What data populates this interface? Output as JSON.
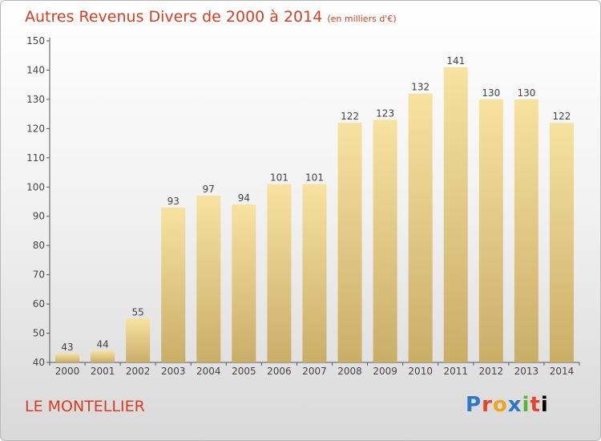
{
  "title": "Autres Revenus Divers de 2000 à 2014",
  "unit": "(en milliers d'€)",
  "place": "LE MONTELLIER",
  "logo": {
    "letters": [
      "P",
      "r",
      "o",
      "x",
      "i",
      "t",
      "i"
    ]
  },
  "chart_data": {
    "type": "bar",
    "categories": [
      "2000",
      "2001",
      "2002",
      "2003",
      "2004",
      "2005",
      "2006",
      "2007",
      "2008",
      "2009",
      "2010",
      "2011",
      "2012",
      "2013",
      "2014"
    ],
    "values": [
      43,
      44,
      55,
      93,
      97,
      94,
      101,
      101,
      122,
      123,
      132,
      141,
      130,
      130,
      122
    ],
    "ylim": [
      40,
      150
    ],
    "yticks": [
      40,
      50,
      60,
      70,
      80,
      90,
      100,
      110,
      120,
      130,
      140,
      150
    ],
    "grid": false,
    "colors": {
      "bar_top": "#f8e2a0",
      "bar_bottom": "#c9ae68",
      "title": "#d93d1e"
    }
  }
}
